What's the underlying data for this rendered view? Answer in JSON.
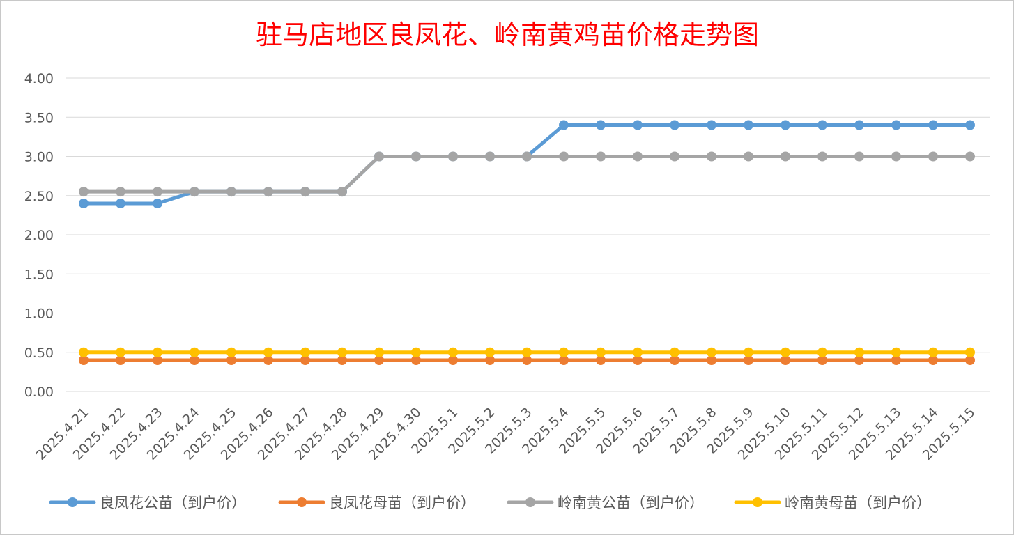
{
  "chart_data": {
    "type": "line",
    "title": "驻马店地区良凤花、岭南黄鸡苗价格走势图",
    "xlabel": "",
    "ylabel": "",
    "ylim": [
      0,
      4
    ],
    "y_ticks": [
      "0.00",
      "0.50",
      "1.00",
      "1.50",
      "2.00",
      "2.50",
      "3.00",
      "3.50",
      "4.00"
    ],
    "grid": "horizontal",
    "legend_position": "bottom",
    "x": [
      "2025.4.21",
      "2025.4.22",
      "2025.4.23",
      "2025.4.24",
      "2025.4.25",
      "2025.4.26",
      "2025.4.27",
      "2025.4.28",
      "2025.4.29",
      "2025.4.30",
      "2025.5.1",
      "2025.5.2",
      "2025.5.3",
      "2025.5.4",
      "2025.5.5",
      "2025.5.6",
      "2025.5.7",
      "2025.5.8",
      "2025.5.9",
      "2025.5.10",
      "2025.5.11",
      "2025.5.12",
      "2025.5.13",
      "2025.5.14",
      "2025.5.15"
    ],
    "series": [
      {
        "name": "良凤花公苗（到户价）",
        "color": "#5b9bd5",
        "values": [
          2.4,
          2.4,
          2.4,
          2.55,
          2.55,
          2.55,
          2.55,
          2.55,
          3.0,
          3.0,
          3.0,
          3.0,
          3.0,
          3.4,
          3.4,
          3.4,
          3.4,
          3.4,
          3.4,
          3.4,
          3.4,
          3.4,
          3.4,
          3.4,
          3.4
        ]
      },
      {
        "name": "良凤花母苗（到户价）",
        "color": "#ed7d31",
        "values": [
          0.4,
          0.4,
          0.4,
          0.4,
          0.4,
          0.4,
          0.4,
          0.4,
          0.4,
          0.4,
          0.4,
          0.4,
          0.4,
          0.4,
          0.4,
          0.4,
          0.4,
          0.4,
          0.4,
          0.4,
          0.4,
          0.4,
          0.4,
          0.4,
          0.4
        ]
      },
      {
        "name": "岭南黄公苗（到户价）",
        "color": "#a5a5a5",
        "values": [
          2.55,
          2.55,
          2.55,
          2.55,
          2.55,
          2.55,
          2.55,
          2.55,
          3.0,
          3.0,
          3.0,
          3.0,
          3.0,
          3.0,
          3.0,
          3.0,
          3.0,
          3.0,
          3.0,
          3.0,
          3.0,
          3.0,
          3.0,
          3.0,
          3.0
        ]
      },
      {
        "name": "岭南黄母苗（到户价）",
        "color": "#ffc000",
        "values": [
          0.5,
          0.5,
          0.5,
          0.5,
          0.5,
          0.5,
          0.5,
          0.5,
          0.5,
          0.5,
          0.5,
          0.5,
          0.5,
          0.5,
          0.5,
          0.5,
          0.5,
          0.5,
          0.5,
          0.5,
          0.5,
          0.5,
          0.5,
          0.5,
          0.5
        ]
      }
    ],
    "title_color": "#ff0000"
  }
}
